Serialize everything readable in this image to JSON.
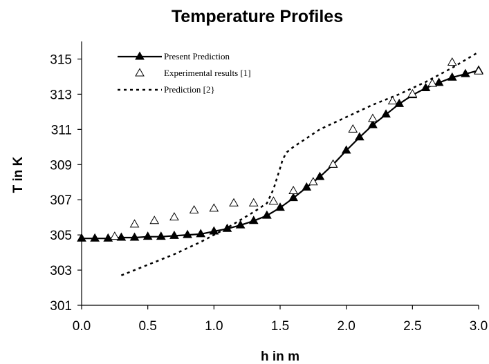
{
  "chart_data": {
    "type": "line",
    "title": "Temperature Profiles",
    "xlabel": "h in m",
    "ylabel": "T in K",
    "xlim": [
      0.0,
      3.0
    ],
    "ylim": [
      301,
      316
    ],
    "x_ticks": [
      "0.0",
      "0.5",
      "1.0",
      "1.5",
      "2.0",
      "2.5",
      "3.0"
    ],
    "y_ticks": [
      "301",
      "303",
      "305",
      "307",
      "309",
      "311",
      "313",
      "315"
    ],
    "grid": false,
    "legend_position": "top-left",
    "series": [
      {
        "name": "Present Prediction",
        "style": "solid line with filled triangle markers",
        "x": [
          0.0,
          0.1,
          0.2,
          0.3,
          0.4,
          0.5,
          0.6,
          0.7,
          0.8,
          0.9,
          1.0,
          1.1,
          1.2,
          1.3,
          1.4,
          1.5,
          1.6,
          1.7,
          1.8,
          1.9,
          2.0,
          2.1,
          2.2,
          2.3,
          2.4,
          2.5,
          2.6,
          2.7,
          2.8,
          2.9,
          3.0
        ],
        "y": [
          304.8,
          304.8,
          304.8,
          304.85,
          304.85,
          304.9,
          304.9,
          304.95,
          305.0,
          305.05,
          305.2,
          305.35,
          305.55,
          305.8,
          306.1,
          306.55,
          307.1,
          307.7,
          308.3,
          309.0,
          309.8,
          310.55,
          311.25,
          311.85,
          312.45,
          312.95,
          313.35,
          313.65,
          313.95,
          314.15,
          314.35
        ]
      },
      {
        "name": "Experimental results [1]",
        "style": "open triangle markers",
        "x": [
          0.25,
          0.4,
          0.55,
          0.7,
          0.85,
          1.0,
          1.15,
          1.3,
          1.45,
          1.6,
          1.75,
          1.9,
          2.05,
          2.2,
          2.35,
          2.5,
          2.65,
          2.8,
          3.0
        ],
        "y": [
          304.9,
          305.6,
          305.8,
          306.0,
          306.4,
          306.5,
          306.8,
          306.8,
          306.9,
          307.5,
          308.0,
          309.0,
          311.0,
          311.6,
          312.6,
          313.0,
          313.6,
          314.8,
          314.3
        ]
      },
      {
        "name": "Prediction  [2}",
        "style": "dotted line",
        "x": [
          0.3,
          0.5,
          0.7,
          0.9,
          1.1,
          1.3,
          1.4,
          1.45,
          1.5,
          1.52,
          1.55,
          1.6,
          1.7,
          1.8,
          2.0,
          2.2,
          2.4,
          2.6,
          2.8,
          3.0
        ],
        "y": [
          302.7,
          303.3,
          303.9,
          304.6,
          305.4,
          306.3,
          306.8,
          307.6,
          308.8,
          309.3,
          309.7,
          310.0,
          310.5,
          311.0,
          311.7,
          312.4,
          313.0,
          313.7,
          314.5,
          315.4
        ]
      }
    ],
    "colors": {
      "series": "#000000",
      "axis": "#000000",
      "background": "#ffffff"
    }
  }
}
